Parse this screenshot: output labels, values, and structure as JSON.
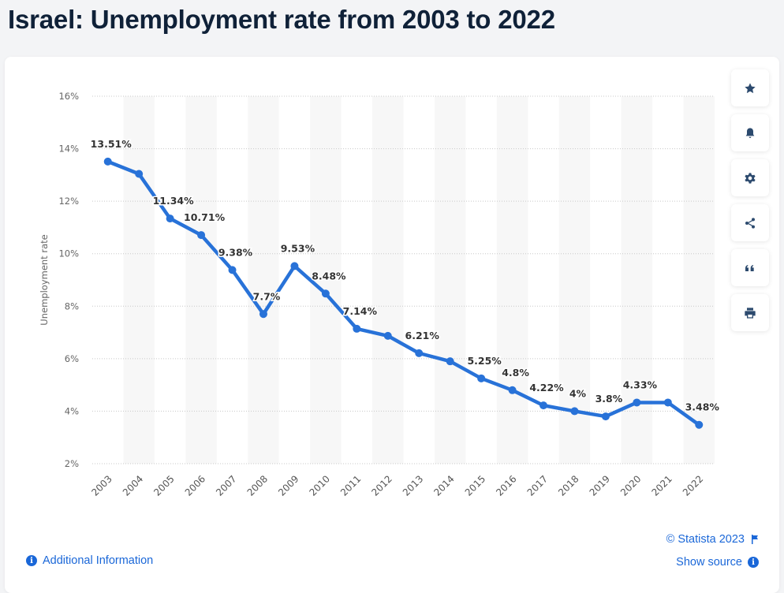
{
  "page": {
    "title": "Israel: Unemployment rate from 2003 to 2022"
  },
  "toolbar": {
    "buttons": [
      {
        "name": "favorite",
        "icon": "star-icon"
      },
      {
        "name": "notification",
        "icon": "bell-icon"
      },
      {
        "name": "settings",
        "icon": "gear-icon"
      },
      {
        "name": "share",
        "icon": "share-icon"
      },
      {
        "name": "cite",
        "icon": "quote-icon"
      },
      {
        "name": "print",
        "icon": "print-icon"
      }
    ]
  },
  "footer": {
    "additional_info": "Additional Information",
    "copyright": "© Statista 2023",
    "show_source": "Show source"
  },
  "colors": {
    "line": "#2872d8",
    "title": "#0f2138",
    "link": "#1a67d8",
    "band": "#f7f7f7",
    "grid": "#c8c8c8"
  },
  "chart_data": {
    "type": "line",
    "title": "Israel: Unemployment rate from 2003 to 2022",
    "xlabel": "",
    "ylabel": "Unemployment rate",
    "categories": [
      "2003",
      "2004",
      "2005",
      "2006",
      "2007",
      "2008",
      "2009",
      "2010",
      "2011",
      "2012",
      "2013",
      "2014",
      "2015",
      "2016",
      "2017",
      "2018",
      "2019",
      "2020",
      "2021",
      "2022"
    ],
    "series": [
      {
        "name": "Unemployment rate",
        "values": [
          13.51,
          13.04,
          11.34,
          10.71,
          9.38,
          7.7,
          9.53,
          8.48,
          7.14,
          6.87,
          6.21,
          5.9,
          5.25,
          4.8,
          4.22,
          4.0,
          3.8,
          4.33,
          4.33,
          3.48
        ],
        "labels": [
          "13.51%",
          "",
          "11.34%",
          "10.71%",
          "9.38%",
          "7.7%",
          "9.53%",
          "8.48%",
          "7.14%",
          "",
          "6.21%",
          "",
          "5.25%",
          "4.8%",
          "4.22%",
          "4%",
          "3.8%",
          "4.33%",
          "",
          "3.48%"
        ]
      }
    ],
    "yticks": [
      "2%",
      "4%",
      "6%",
      "8%",
      "10%",
      "12%",
      "14%",
      "16%"
    ],
    "ytick_values": [
      2,
      4,
      6,
      8,
      10,
      12,
      14,
      16
    ],
    "ylim": [
      2,
      16
    ],
    "grid": true,
    "legend": "none"
  }
}
